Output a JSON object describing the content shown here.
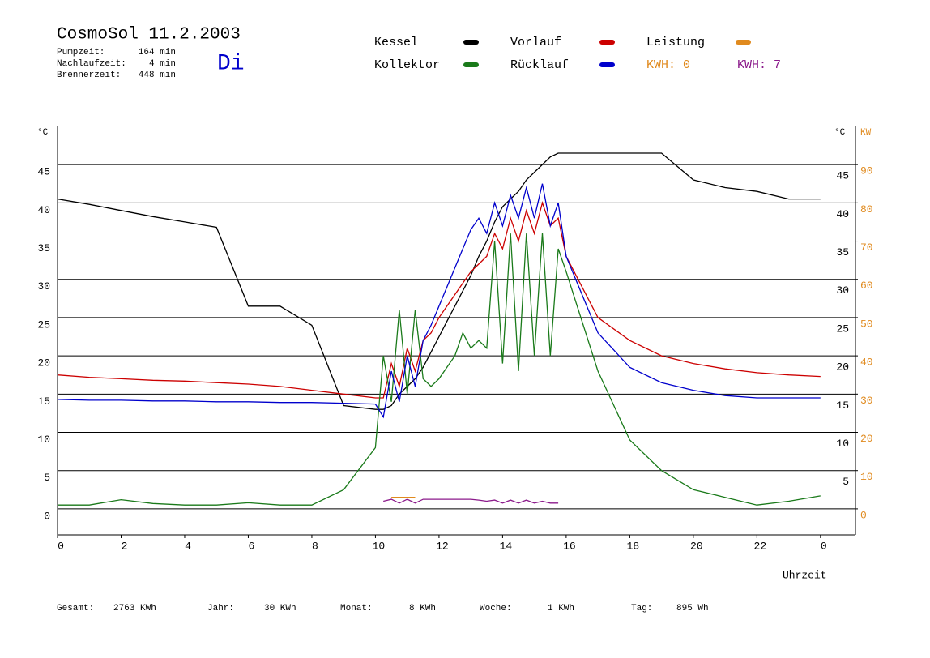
{
  "chart_data": {
    "type": "line",
    "title": "CosmoSol 11.2.2003",
    "day": "Di",
    "info": [
      {
        "label": "Pumpzeit:",
        "value": "164 min"
      },
      {
        "label": "Nachlaufzeit:",
        "value": "4 min"
      },
      {
        "label": "Brennerzeit:",
        "value": "448 min"
      }
    ],
    "kwh_labels": [
      {
        "text": "KWH: 0",
        "color": "#e08a1e"
      },
      {
        "text": "KWH: 7",
        "color": "#8b1a8b"
      }
    ],
    "x_label": "Uhrzeit",
    "y_label": "°C",
    "y2_label": "KW",
    "xlim": [
      0,
      25.1
    ],
    "xticks": [
      0,
      2,
      4,
      6,
      8,
      10,
      12,
      14,
      16,
      18,
      20,
      22,
      {
        "value": 24,
        "label": "0"
      }
    ],
    "ylim": [
      -3.4,
      50.1
    ],
    "yticks": [
      0,
      5,
      10,
      15,
      20,
      25,
      30,
      35,
      40,
      45
    ],
    "y2lim": [
      -6.8,
      100.2
    ],
    "y2ticks": [
      0,
      10,
      20,
      30,
      40,
      50,
      60,
      70,
      80,
      90
    ],
    "grid": true,
    "x": [
      0,
      1,
      2,
      3,
      4,
      5,
      6,
      7,
      8,
      9,
      10,
      10.25,
      10.5,
      10.75,
      11,
      11.25,
      11.5,
      11.75,
      12,
      12.25,
      12.5,
      12.75,
      13,
      13.25,
      13.5,
      13.75,
      14,
      14.25,
      14.5,
      14.75,
      15,
      15.25,
      15.5,
      15.75,
      16,
      17,
      18,
      19,
      20,
      21,
      22,
      23,
      24
    ],
    "series": [
      {
        "name": "Kessel",
        "color": "#000000",
        "values": [
          40.5,
          39.8,
          39,
          38.2,
          37.5,
          36.8,
          26.5,
          26.5,
          24,
          13.5,
          13,
          13,
          13.5,
          15,
          16,
          17,
          18.5,
          20.5,
          22.5,
          24.5,
          26.5,
          28.5,
          30.5,
          33,
          35,
          37.5,
          39.5,
          40.5,
          41.5,
          43,
          44,
          45,
          46,
          46.5,
          46.5,
          46.5,
          46.5,
          46.5,
          43,
          42,
          41.5,
          40.5,
          40.5
        ]
      },
      {
        "name": "Vorlauf",
        "color": "#cc0000",
        "values": [
          17.5,
          17.2,
          17,
          16.8,
          16.7,
          16.5,
          16.3,
          16,
          15.5,
          15,
          14.5,
          14.5,
          19,
          16,
          21,
          18,
          22,
          23,
          25,
          26.5,
          28,
          29.5,
          31,
          32,
          33,
          36,
          34,
          38,
          35,
          39,
          36,
          40,
          37,
          38,
          33,
          25,
          22,
          20,
          19,
          18.3,
          17.8,
          17.5,
          17.3
        ]
      },
      {
        "name": "Kollektor",
        "color": "#1a7a1a",
        "values": [
          0.5,
          0.5,
          1.2,
          0.7,
          0.5,
          0.5,
          0.8,
          0.5,
          0.5,
          2.5,
          8,
          20,
          14,
          26,
          15,
          26,
          17,
          16,
          17,
          18.5,
          20,
          23,
          21,
          22,
          21,
          35,
          19,
          36,
          18,
          36,
          20,
          36,
          20,
          34,
          31,
          18,
          9,
          5,
          2.5,
          1.5,
          0.5,
          1,
          1.7
        ]
      },
      {
        "name": "Rücklauf",
        "color": "#0000cc",
        "values": [
          14.3,
          14.2,
          14.2,
          14.1,
          14.1,
          14,
          14,
          13.9,
          13.9,
          13.8,
          13.7,
          12,
          18,
          14,
          20,
          16,
          22,
          24,
          26.5,
          29,
          31.5,
          34,
          36.5,
          38,
          36,
          40,
          37,
          41,
          38,
          42,
          38,
          42.5,
          37,
          40,
          33,
          23,
          18.5,
          16.5,
          15.5,
          14.8,
          14.5,
          14.5,
          14.5
        ]
      },
      {
        "name": "Leistung",
        "color": "#e08a1e",
        "axis": "y2",
        "values": [
          null,
          null,
          null,
          null,
          null,
          null,
          null,
          null,
          null,
          null,
          null,
          null,
          3,
          3,
          3,
          3,
          null,
          null,
          null,
          null,
          null,
          null,
          null,
          null,
          null,
          null,
          null,
          null,
          null,
          null,
          null,
          null,
          null,
          null,
          null,
          null,
          null,
          null,
          null,
          null,
          null,
          null,
          null
        ]
      },
      {
        "color": "#8b1a8b",
        "axis": "y2",
        "values": [
          null,
          null,
          null,
          null,
          null,
          null,
          null,
          null,
          null,
          null,
          null,
          2,
          2.5,
          1.5,
          2.5,
          1.5,
          2.5,
          2.5,
          2.5,
          2.5,
          2.5,
          2.5,
          2.5,
          2.3,
          2,
          2.3,
          1.5,
          2.3,
          1.5,
          2.3,
          1.5,
          2,
          1.5,
          1.5,
          null,
          null,
          null,
          null,
          null,
          null,
          null,
          null,
          null
        ]
      }
    ],
    "totals": [
      {
        "label": "Gesamt:",
        "value": "2763 KWh"
      },
      {
        "label": "Jahr:",
        "value": "30 KWh"
      },
      {
        "label": "Monat:",
        "value": "8 KWh"
      },
      {
        "label": "Woche:",
        "value": "1 KWh"
      },
      {
        "label": "Tag:",
        "value": "895 Wh"
      }
    ]
  }
}
